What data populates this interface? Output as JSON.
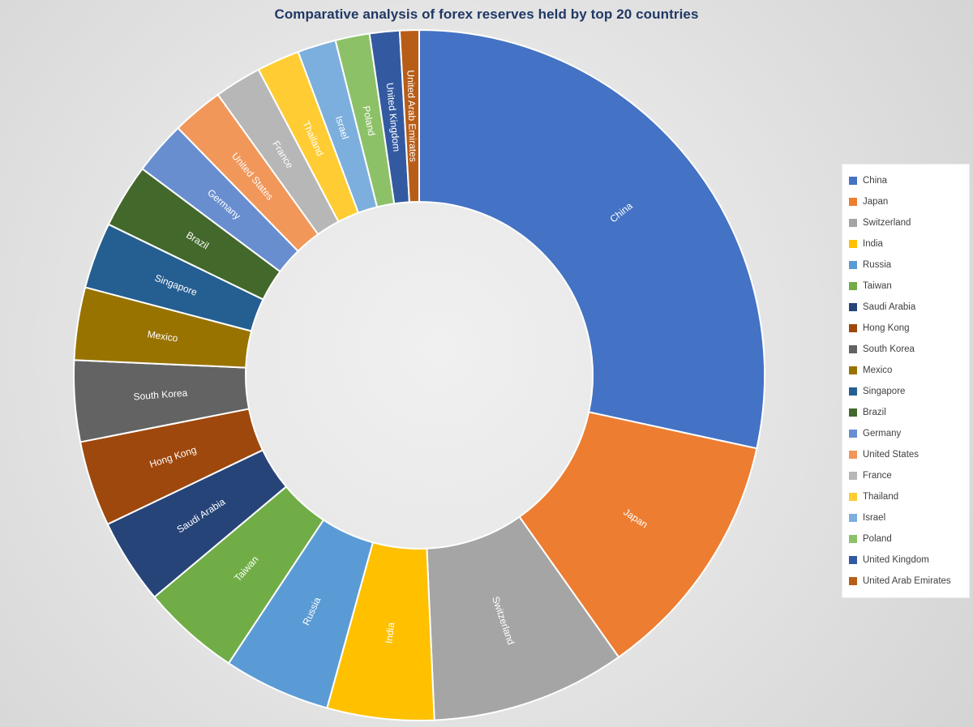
{
  "chart_data": {
    "type": "pie",
    "subtype": "donut",
    "title": "Comparative analysis of forex reserves held by top 20 countries",
    "legend_position": "right",
    "value_labels_shown": false,
    "values_are_estimated_percent_shares": true,
    "donut_hole_ratio": 0.5,
    "slice_label_color": "#FFFFFF",
    "slice_border_color": "#FFFFFF",
    "categories": [
      "China",
      "Japan",
      "Switzerland",
      "India",
      "Russia",
      "Taiwan",
      "Saudi Arabia",
      "Hong Kong",
      "South Korea",
      "Mexico",
      "Singapore",
      "Brazil",
      "Germany",
      "United States",
      "France",
      "Thailand",
      "Israel",
      "Poland",
      "United Kingdom",
      "United Arab Emirates"
    ],
    "values": [
      28.4,
      11.8,
      9.1,
      5.0,
      5.0,
      4.6,
      4.0,
      4.0,
      3.8,
      3.4,
      3.1,
      3.0,
      2.5,
      2.4,
      2.2,
      2.0,
      1.8,
      1.6,
      1.4,
      0.9
    ],
    "colors": [
      "#4472C4",
      "#ED7D31",
      "#A5A5A5",
      "#FFC000",
      "#5B9BD5",
      "#70AD47",
      "#264478",
      "#9E480E",
      "#636363",
      "#997300",
      "#255E91",
      "#43682B",
      "#698ED0",
      "#F1975A",
      "#B7B7B7",
      "#FFCD33",
      "#7CAFDD",
      "#8CC168",
      "#335AA1",
      "#B85D18"
    ]
  }
}
